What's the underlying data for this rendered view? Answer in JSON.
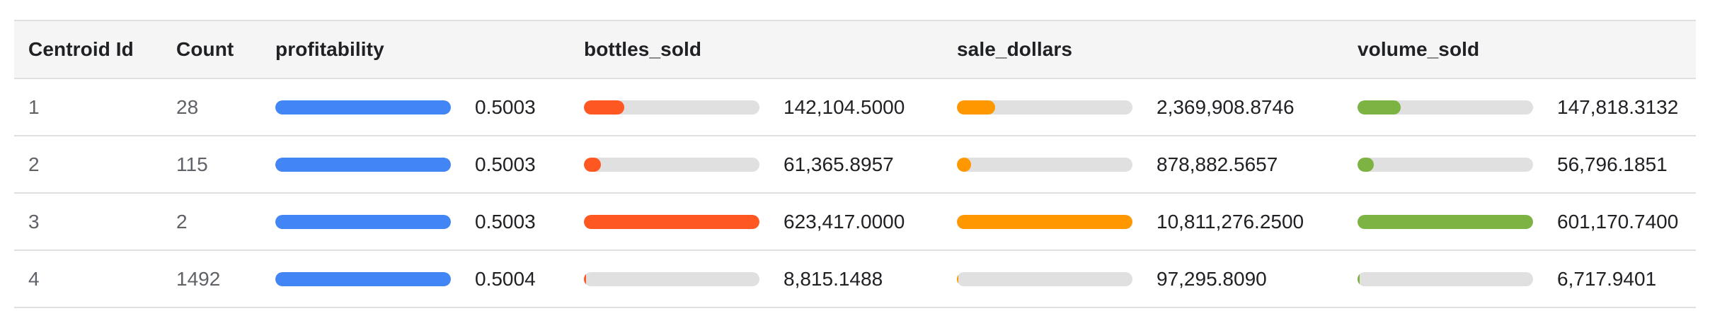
{
  "table": {
    "headers": {
      "centroid_id": "Centroid Id",
      "count": "Count",
      "profitability": "profitability",
      "bottles_sold": "bottles_sold",
      "sale_dollars": "sale_dollars",
      "volume_sold": "volume_sold"
    },
    "colors": {
      "profitability": "#4285f4",
      "bottles_sold": "#ff5722",
      "sale_dollars": "#ff9800",
      "volume_sold": "#7cb342",
      "track": "#e0e0e0"
    },
    "rows": [
      {
        "centroid_id": "1",
        "count": "28",
        "profitability": {
          "text": "0.5003",
          "fraction": 1.0
        },
        "bottles_sold": {
          "text": "142,104.5000",
          "fraction": 0.228
        },
        "sale_dollars": {
          "text": "2,369,908.8746",
          "fraction": 0.219
        },
        "volume_sold": {
          "text": "147,818.3132",
          "fraction": 0.246
        }
      },
      {
        "centroid_id": "2",
        "count": "115",
        "profitability": {
          "text": "0.5003",
          "fraction": 1.0
        },
        "bottles_sold": {
          "text": "61,365.8957",
          "fraction": 0.098
        },
        "sale_dollars": {
          "text": "878,882.5657",
          "fraction": 0.081
        },
        "volume_sold": {
          "text": "56,796.1851",
          "fraction": 0.094
        }
      },
      {
        "centroid_id": "3",
        "count": "2",
        "profitability": {
          "text": "0.5003",
          "fraction": 1.0
        },
        "bottles_sold": {
          "text": "623,417.0000",
          "fraction": 1.0
        },
        "sale_dollars": {
          "text": "10,811,276.2500",
          "fraction": 1.0
        },
        "volume_sold": {
          "text": "601,170.7400",
          "fraction": 1.0
        }
      },
      {
        "centroid_id": "4",
        "count": "1492",
        "profitability": {
          "text": "0.5004",
          "fraction": 1.0
        },
        "bottles_sold": {
          "text": "8,815.1488",
          "fraction": 0.014
        },
        "sale_dollars": {
          "text": "97,295.8090",
          "fraction": 0.009
        },
        "volume_sold": {
          "text": "6,717.9401",
          "fraction": 0.011
        }
      }
    ]
  }
}
